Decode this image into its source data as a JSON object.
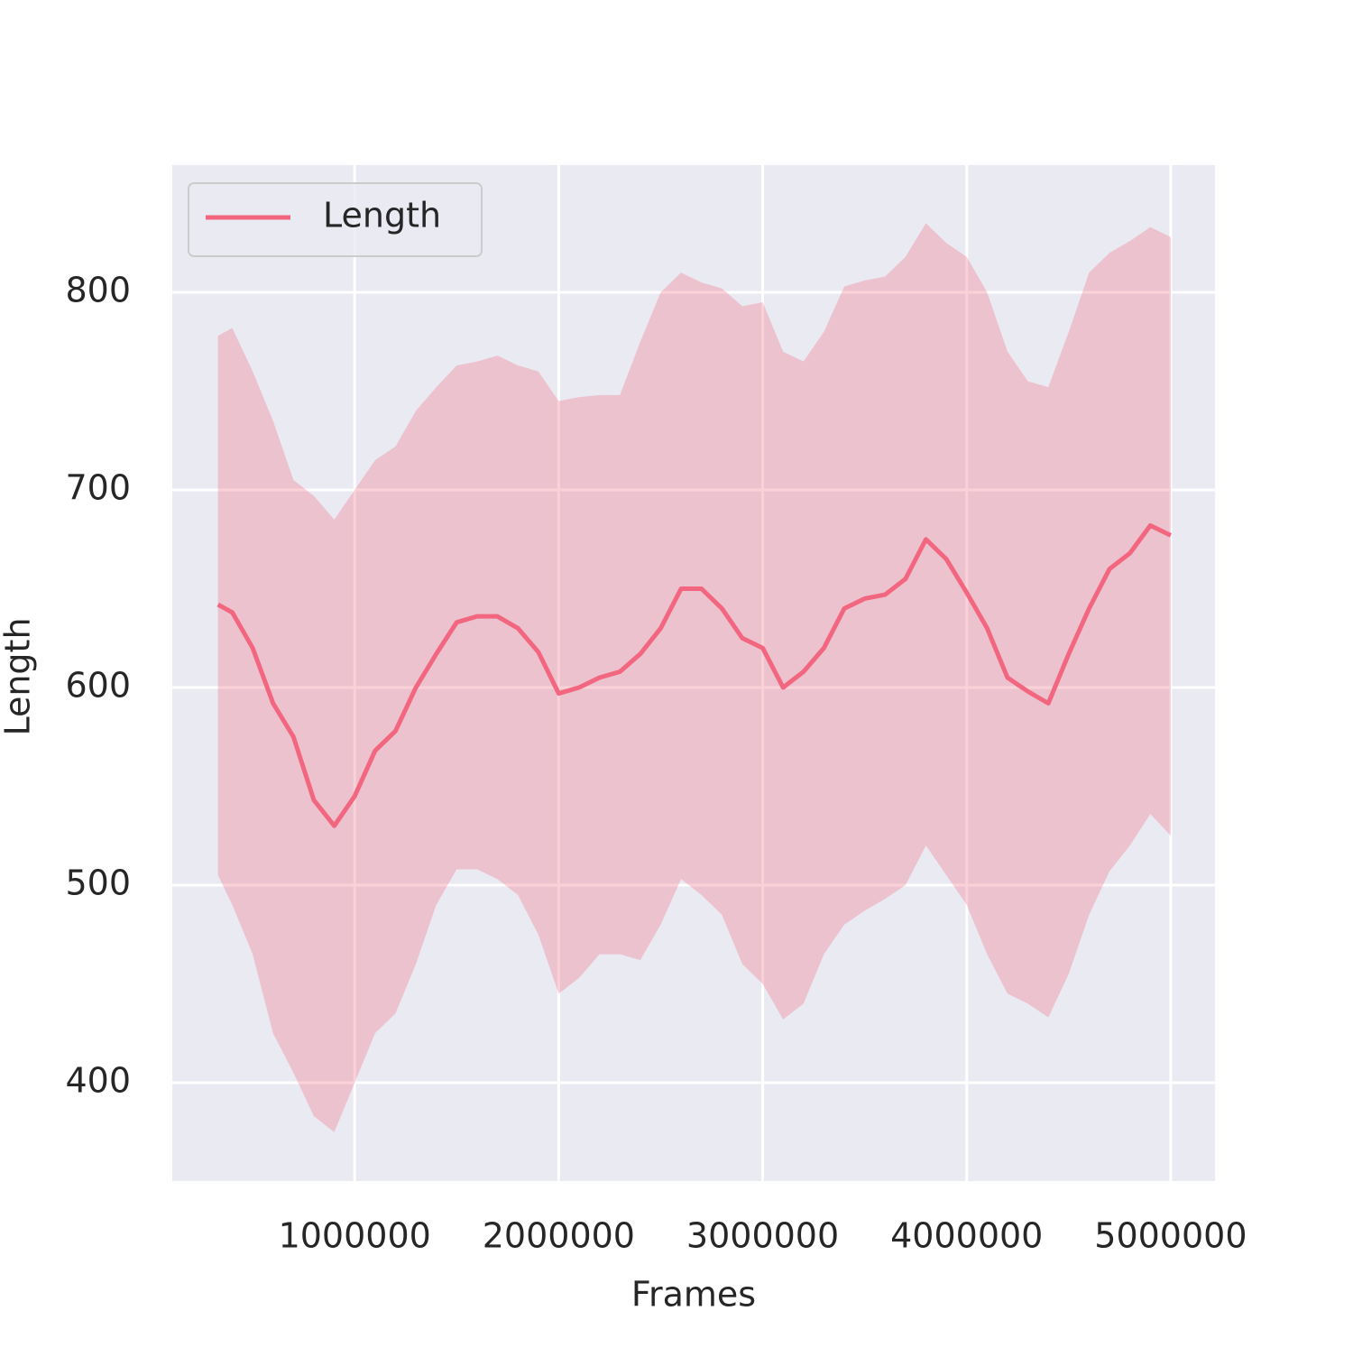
{
  "chart_data": {
    "type": "line",
    "xlabel": "Frames",
    "ylabel": "Length",
    "x": [
      330000,
      400000,
      500000,
      600000,
      700000,
      800000,
      900000,
      1000000,
      1100000,
      1200000,
      1300000,
      1400000,
      1500000,
      1600000,
      1700000,
      1800000,
      1900000,
      2000000,
      2100000,
      2200000,
      2300000,
      2400000,
      2500000,
      2600000,
      2700000,
      2800000,
      2900000,
      3000000,
      3100000,
      3200000,
      3300000,
      3400000,
      3500000,
      3600000,
      3700000,
      3800000,
      3900000,
      4000000,
      4100000,
      4200000,
      4300000,
      4400000,
      4500000,
      4600000,
      4700000,
      4800000,
      4900000,
      5000000
    ],
    "series": [
      {
        "name": "Length",
        "color": "#f2677f",
        "values": [
          642,
          638,
          620,
          592,
          575,
          543,
          530,
          545,
          568,
          578,
          600,
          617,
          633,
          636,
          636,
          630,
          618,
          597,
          600,
          605,
          608,
          617,
          630,
          650,
          650,
          640,
          625,
          620,
          600,
          608,
          620,
          640,
          645,
          647,
          655,
          675,
          665,
          648,
          630,
          605,
          598,
          592,
          617,
          640,
          660,
          668,
          682,
          677
        ],
        "upper": [
          778,
          782,
          760,
          735,
          705,
          697,
          685,
          700,
          715,
          722,
          740,
          752,
          763,
          765,
          768,
          763,
          760,
          745,
          747,
          748,
          748,
          775,
          800,
          810,
          805,
          802,
          793,
          795,
          770,
          765,
          780,
          803,
          806,
          808,
          818,
          835,
          825,
          818,
          800,
          770,
          755,
          752,
          780,
          810,
          820,
          826,
          833,
          828
        ],
        "lower": [
          505,
          490,
          465,
          425,
          405,
          383,
          375,
          400,
          425,
          435,
          460,
          490,
          508,
          508,
          503,
          495,
          475,
          445,
          453,
          465,
          465,
          462,
          480,
          503,
          495,
          485,
          460,
          450,
          432,
          440,
          465,
          480,
          487,
          493,
          500,
          520,
          505,
          490,
          465,
          445,
          440,
          433,
          455,
          485,
          507,
          520,
          536,
          525
        ]
      }
    ],
    "xlim": [
      106000,
      5217000
    ],
    "ylim": [
      350.2,
      864.4
    ],
    "xticks": [
      1000000,
      2000000,
      3000000,
      4000000,
      5000000
    ],
    "yticks": [
      400,
      500,
      600,
      700,
      800
    ],
    "grid": true,
    "legend": "upper left"
  }
}
